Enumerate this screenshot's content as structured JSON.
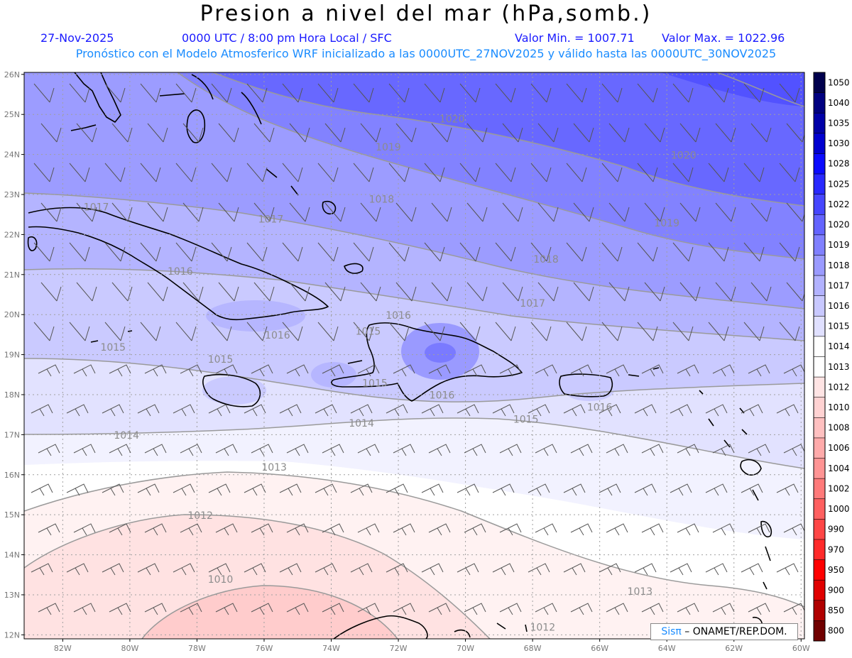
{
  "header": {
    "title": "Presion a nivel del mar (hPa,somb.)",
    "date": "27-Nov-2025",
    "time": "0000 UTC / 8:00 pm Hora Local / SFC",
    "min": "Valor Min. = 1007.71",
    "max": "Valor Max. = 1022.96",
    "subtitle": "Pronóstico con el Modelo Atmosferico WRF inicializado a las 0000UTC_27NOV2025 y válido hasta las  0000UTC_30NOV2025"
  },
  "axes": {
    "lat_labels": [
      "26N",
      "25N",
      "24N",
      "23N",
      "22N",
      "21N",
      "20N",
      "19N",
      "18N",
      "17N",
      "16N",
      "15N",
      "14N",
      "13N",
      "12N"
    ],
    "lon_labels": [
      "82W",
      "80W",
      "78W",
      "76W",
      "74W",
      "72W",
      "70W",
      "68W",
      "66W",
      "64W",
      "62W",
      "60W"
    ]
  },
  "colorbar": {
    "levels": [
      "1050",
      "1040",
      "1035",
      "1030",
      "1028",
      "1025",
      "1022",
      "1020",
      "1019",
      "1018",
      "1017",
      "1016",
      "1015",
      "1014",
      "1013",
      "1012",
      "1010",
      "1008",
      "1006",
      "1004",
      "1002",
      "1000",
      "990",
      "970",
      "950",
      "900",
      "850",
      "800"
    ],
    "colors": [
      "#00004d",
      "#000080",
      "#0000a8",
      "#0000d0",
      "#0a0aff",
      "#2828ff",
      "#4646ff",
      "#6464ff",
      "#8080ff",
      "#9a9aff",
      "#b2b2ff",
      "#c8c8ff",
      "#e0e0ff",
      "#ffffff",
      "#ffffff",
      "#ffe4e4",
      "#ffd2d2",
      "#ffc0c0",
      "#ffaaaa",
      "#ff9494",
      "#ff7a7a",
      "#ff6060",
      "#ff4646",
      "#ff2a2a",
      "#ff0000",
      "#e00000",
      "#b00000",
      "#700000"
    ]
  },
  "contour_labels": [
    {
      "text": "1020",
      "lon": -70.4,
      "lat": 24.8
    },
    {
      "text": "1020",
      "lon": -63.5,
      "lat": 23.9
    },
    {
      "text": "1019",
      "lon": -72.3,
      "lat": 24.1
    },
    {
      "text": "1019",
      "lon": -64.0,
      "lat": 22.2
    },
    {
      "text": "1018",
      "lon": -72.5,
      "lat": 22.8
    },
    {
      "text": "1018",
      "lon": -67.6,
      "lat": 21.3
    },
    {
      "text": "1017",
      "lon": -81.0,
      "lat": 22.6
    },
    {
      "text": "1017",
      "lon": -75.8,
      "lat": 22.3
    },
    {
      "text": "1017",
      "lon": -68.0,
      "lat": 20.2
    },
    {
      "text": "1016",
      "lon": -78.5,
      "lat": 21.0
    },
    {
      "text": "1016",
      "lon": -75.6,
      "lat": 19.4
    },
    {
      "text": "1016",
      "lon": -72.0,
      "lat": 19.9
    },
    {
      "text": "1016",
      "lon": -70.7,
      "lat": 17.9
    },
    {
      "text": "1016",
      "lon": -66.0,
      "lat": 17.6
    },
    {
      "text": "1015",
      "lon": -80.5,
      "lat": 19.1
    },
    {
      "text": "1015",
      "lon": -77.3,
      "lat": 18.8
    },
    {
      "text": "1015",
      "lon": -72.9,
      "lat": 19.5
    },
    {
      "text": "1015",
      "lon": -72.7,
      "lat": 18.2
    },
    {
      "text": "1015",
      "lon": -68.2,
      "lat": 17.3
    },
    {
      "text": "1014",
      "lon": -80.1,
      "lat": 16.9
    },
    {
      "text": "1014",
      "lon": -73.1,
      "lat": 17.2
    },
    {
      "text": "1013",
      "lon": -75.7,
      "lat": 16.1
    },
    {
      "text": "1013",
      "lon": -64.8,
      "lat": 13.0
    },
    {
      "text": "1012",
      "lon": -77.9,
      "lat": 14.9
    },
    {
      "text": "1012",
      "lon": -67.7,
      "lat": 12.1
    },
    {
      "text": "1010",
      "lon": -77.3,
      "lat": 13.3
    }
  ],
  "credit": {
    "brand": "Sisπ",
    "org": " – ONAMET/REP.DOM."
  }
}
